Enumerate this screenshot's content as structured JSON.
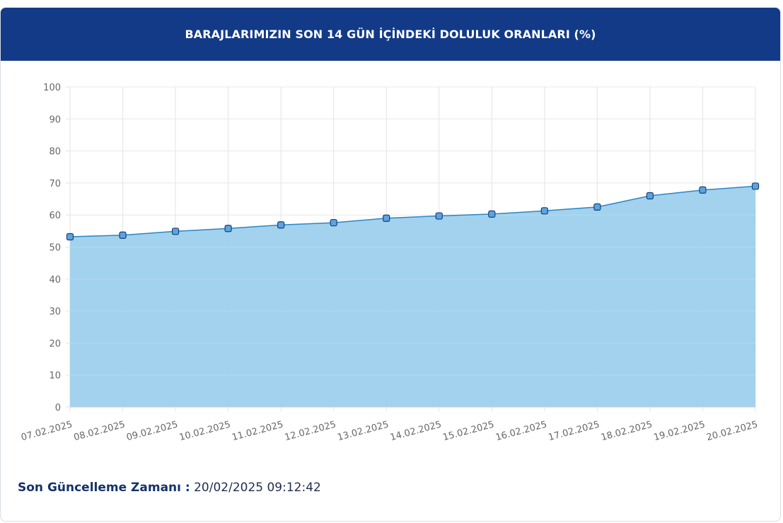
{
  "header": {
    "title": "BARAJLARIMIZIN SON 14 GÜN İÇİNDEKİ DOLULUK ORANLARI (%)"
  },
  "footer": {
    "label": "Son Güncelleme Zamanı :",
    "value": "20/02/2025 09:12:42"
  },
  "colors": {
    "header_bg": "#123a87",
    "area_fill": "#9dd0ec",
    "line": "#2b86c5",
    "marker_fill": "#5ba4dc",
    "marker_stroke": "#1b3f7a"
  },
  "chart_data": {
    "type": "area",
    "title": "BARAJLARIMIZIN SON 14 GÜN İÇİNDEKİ DOLULUK ORANLARI (%)",
    "x": [
      "07.02.2025",
      "08.02.2025",
      "09.02.2025",
      "10.02.2025",
      "11.02.2025",
      "12.02.2025",
      "13.02.2025",
      "14.02.2025",
      "15.02.2025",
      "16.02.2025",
      "17.02.2025",
      "18.02.2025",
      "19.02.2025",
      "20.02.2025"
    ],
    "y": [
      53.2,
      53.7,
      54.9,
      55.8,
      56.9,
      57.6,
      59.0,
      59.7,
      60.3,
      61.3,
      62.5,
      66.0,
      67.8,
      69.0
    ],
    "ylim": [
      0,
      100
    ],
    "yticks": [
      0,
      10,
      20,
      30,
      40,
      50,
      60,
      70,
      80,
      90,
      100
    ],
    "grid": true,
    "legend": "none",
    "xlabel": "",
    "ylabel": ""
  }
}
